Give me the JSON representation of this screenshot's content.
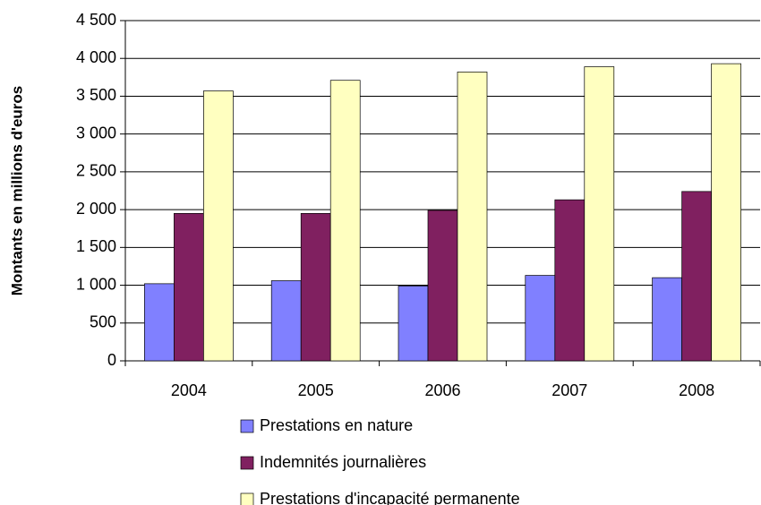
{
  "chart_data": {
    "type": "bar",
    "y_label": "Montants en millions d'euros",
    "categories": [
      "2004",
      "2005",
      "2006",
      "2007",
      "2008"
    ],
    "series": [
      {
        "name": "Prestations en nature",
        "color": "#8080ff",
        "values": [
          1020,
          1060,
          990,
          1130,
          1100
        ]
      },
      {
        "name": "Indemnités journalières",
        "color": "#802060",
        "values": [
          1950,
          1950,
          1990,
          2130,
          2240
        ]
      },
      {
        "name": "Prestations d'incapacité permanente",
        "color": "#ffffc0",
        "values": [
          3570,
          3710,
          3820,
          3890,
          3930
        ]
      }
    ],
    "ylim": [
      0,
      4500
    ],
    "yticks": [
      0,
      500,
      {
        "value": 1000,
        "label": "1 000"
      },
      {
        "value": 1500,
        "label": "1 500"
      },
      {
        "value": 2000,
        "label": "2 000"
      },
      {
        "value": 2500,
        "label": "2 500"
      },
      {
        "value": 3000,
        "label": "3 000"
      },
      {
        "value": 3500,
        "label": "3 500"
      },
      {
        "value": 4000,
        "label": "4 000"
      },
      {
        "value": 4500,
        "label": "4 500"
      }
    ],
    "grid": true
  }
}
